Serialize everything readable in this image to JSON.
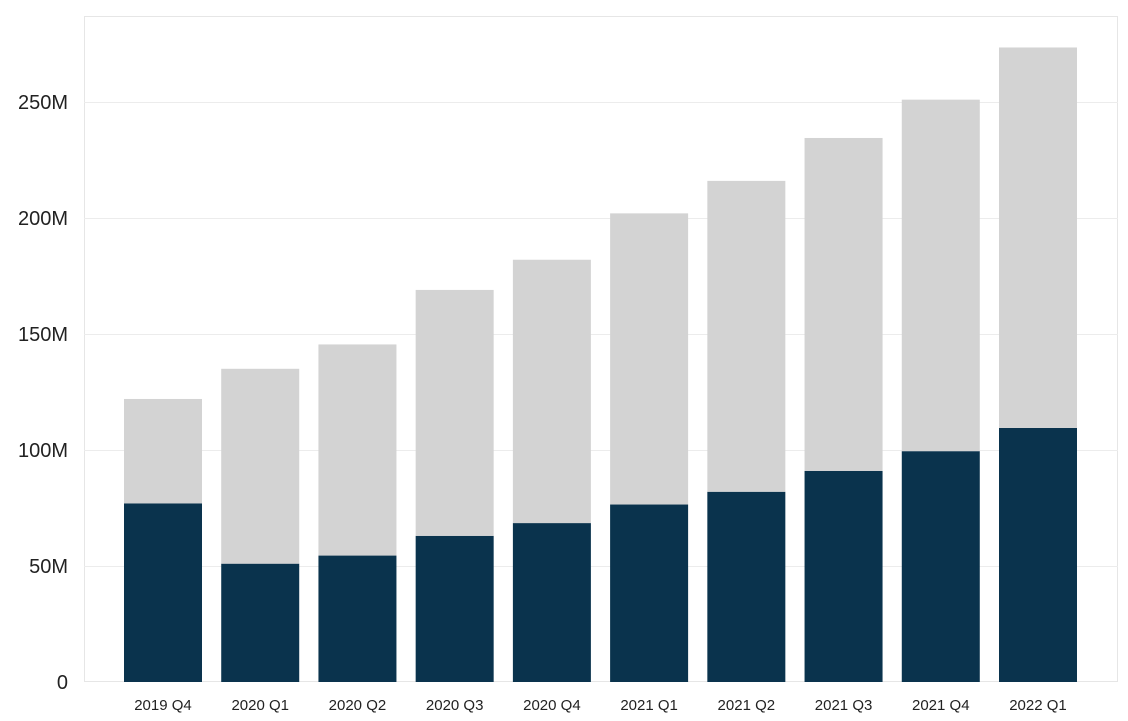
{
  "chart_data": {
    "type": "bar",
    "stacked": true,
    "title": "",
    "xlabel": "",
    "ylabel": "",
    "categories": [
      "2019 Q4",
      "2020 Q1",
      "2020 Q2",
      "2020 Q3",
      "2020 Q4",
      "2021 Q1",
      "2021 Q2",
      "2021 Q3",
      "2021 Q4",
      "2022 Q1"
    ],
    "series": [
      {
        "values": [
          77,
          51,
          54.5,
          63,
          68.5,
          76.5,
          82,
          91,
          99.5,
          109.5
        ],
        "color": "#0a334d"
      },
      {
        "values": [
          45,
          84,
          91,
          106,
          113.5,
          125.5,
          134,
          143.5,
          151.5,
          164
        ],
        "color": "#d3d3d3"
      }
    ],
    "ylim": [
      0,
      275
    ],
    "yticks": [
      0,
      50,
      100,
      150,
      200,
      250
    ],
    "ytick_labels": [
      "0",
      "50M",
      "100M",
      "150M",
      "200M",
      "250M"
    ],
    "grid": true,
    "legend": "none"
  },
  "colors": {
    "background": "#ffffff",
    "grid": "#ececec",
    "frame": "#e6e6e6",
    "text": "#222222"
  }
}
